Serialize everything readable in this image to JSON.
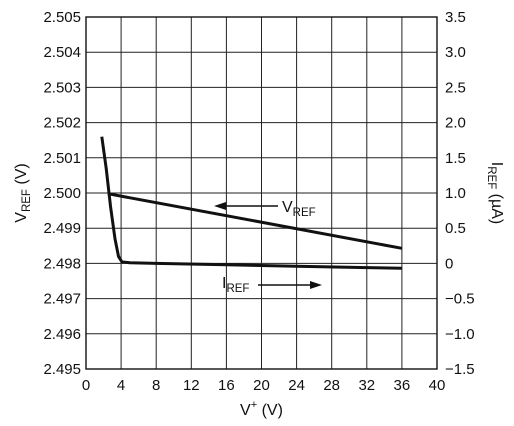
{
  "chart_data": {
    "type": "line",
    "x_axis": {
      "ticks": [
        0,
        4,
        8,
        12,
        16,
        20,
        24,
        28,
        32,
        36,
        40
      ],
      "label_main": "V",
      "label_sup": "+",
      "label_unit": " (V)",
      "lim": [
        0,
        40
      ]
    },
    "y_left": {
      "ticks": [
        "2.495",
        "2.496",
        "2.497",
        "2.498",
        "2.499",
        "2.500",
        "2.501",
        "2.502",
        "2.503",
        "2.504",
        "2.505"
      ],
      "label_main": "V",
      "label_sub": "REF",
      "label_unit": " (V)",
      "lim": [
        2.495,
        2.505
      ]
    },
    "y_right": {
      "ticks": [
        "−1.5",
        "−1.0",
        "−0.5",
        "0",
        "0.5",
        "1.0",
        "1.5",
        "2.0",
        "2.5",
        "3.0",
        "3.5"
      ],
      "label_main": "I",
      "label_sub": "REF",
      "label_unit": " (µA)",
      "lim": [
        -1.5,
        3.5
      ]
    },
    "series": [
      {
        "name": "VREF",
        "axis": "left",
        "x": [
          2.5,
          36
        ],
        "y": [
          2.49998,
          2.49843
        ]
      },
      {
        "name": "IREF",
        "axis": "right",
        "x": [
          1.8,
          2.3,
          2.8,
          3.3,
          3.7,
          4.1,
          5,
          8,
          16,
          24,
          32,
          36
        ],
        "y": [
          1.8,
          1.35,
          0.8,
          0.35,
          0.1,
          0.02,
          0.01,
          0.0,
          -0.02,
          -0.04,
          -0.06,
          -0.07
        ]
      }
    ],
    "annotations": [
      {
        "series": "VREF",
        "text_main": "V",
        "text_sub": "REF",
        "arrow": "left"
      },
      {
        "series": "IREF",
        "text_main": "I",
        "text_sub": "REF",
        "arrow": "right"
      }
    ],
    "grid": true
  }
}
